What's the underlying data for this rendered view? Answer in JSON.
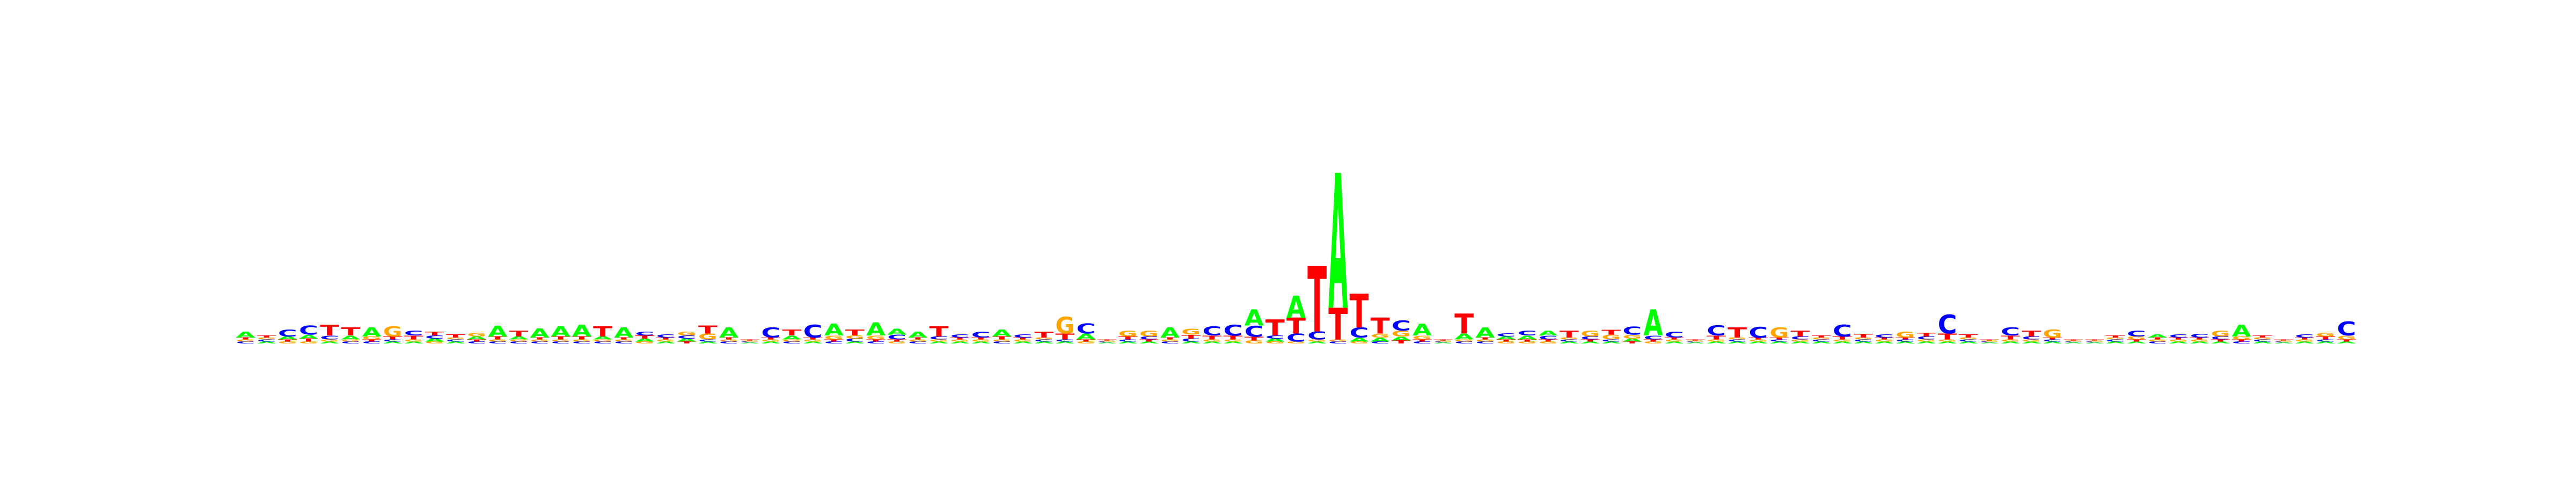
{
  "chart_data": {
    "type": "sequence_logo",
    "alphabet": [
      "A",
      "C",
      "G",
      "T"
    ],
    "colors": {
      "A": "#00ff00",
      "C": "#0000ff",
      "G": "#ffa500",
      "T": "#ff0000"
    },
    "unit": "bits",
    "ylim": [
      0,
      2
    ],
    "axes_visible": false,
    "positions": [
      {
        "A": 0.03,
        "C": 0.01,
        "G": 0.01,
        "T": 0.01
      },
      {
        "A": 0.01,
        "C": 0.01,
        "G": 0.01,
        "T": 0.01
      },
      {
        "A": 0.015,
        "C": 0.035,
        "G": 0.01,
        "T": 0.01
      },
      {
        "A": 0.02,
        "C": 0.045,
        "G": 0.01,
        "T": 0.015
      },
      {
        "A": 0.01,
        "C": 0.02,
        "G": 0.01,
        "T": 0.055
      },
      {
        "A": 0.02,
        "C": 0.01,
        "G": 0.01,
        "T": 0.04
      },
      {
        "A": 0.045,
        "C": 0.01,
        "G": 0.015,
        "T": 0.01
      },
      {
        "A": 0.01,
        "C": 0.01,
        "G": 0.05,
        "T": 0.015
      },
      {
        "A": 0.01,
        "C": 0.025,
        "G": 0.01,
        "T": 0.02
      },
      {
        "A": 0.015,
        "C": 0.015,
        "G": 0.01,
        "T": 0.02
      },
      {
        "A": 0.01,
        "C": 0.01,
        "G": 0.01,
        "T": 0.015
      },
      {
        "A": 0.015,
        "C": 0.01,
        "G": 0.02,
        "T": 0.01
      },
      {
        "A": 0.055,
        "C": 0.01,
        "G": 0.01,
        "T": 0.015
      },
      {
        "A": 0.015,
        "C": 0.01,
        "G": 0.01,
        "T": 0.03
      },
      {
        "A": 0.045,
        "C": 0.01,
        "G": 0.01,
        "T": 0.01
      },
      {
        "A": 0.05,
        "C": 0.01,
        "G": 0.01,
        "T": 0.015
      },
      {
        "A": 0.06,
        "C": 0.01,
        "G": 0.01,
        "T": 0.015
      },
      {
        "A": 0.015,
        "C": 0.01,
        "G": 0.01,
        "T": 0.05
      },
      {
        "A": 0.05,
        "C": 0.01,
        "G": 0.01,
        "T": 0.01
      },
      {
        "A": 0.015,
        "C": 0.02,
        "G": 0.01,
        "T": 0.015
      },
      {
        "A": 0.01,
        "C": 0.015,
        "G": 0.01,
        "T": 0.01
      },
      {
        "A": 0.015,
        "C": 0.015,
        "G": 0.02,
        "T": 0.01
      },
      {
        "A": 0.01,
        "C": 0.01,
        "G": 0.03,
        "T": 0.04
      },
      {
        "A": 0.05,
        "C": 0.01,
        "G": 0.01,
        "T": 0.01
      },
      {
        "A": 0.005,
        "C": 0.005,
        "G": 0.005,
        "T": 0.005
      },
      {
        "A": 0.01,
        "C": 0.05,
        "G": 0.01,
        "T": 0.01
      },
      {
        "A": 0.02,
        "C": 0.01,
        "G": 0.01,
        "T": 0.03
      },
      {
        "A": 0.01,
        "C": 0.065,
        "G": 0.01,
        "T": 0.01
      },
      {
        "A": 0.06,
        "C": 0.01,
        "G": 0.02,
        "T": 0.01
      },
      {
        "A": 0.01,
        "C": 0.015,
        "G": 0.015,
        "T": 0.03
      },
      {
        "A": 0.065,
        "C": 0.01,
        "G": 0.02,
        "T": 0.01
      },
      {
        "A": 0.03,
        "C": 0.025,
        "G": 0.01,
        "T": 0.01
      },
      {
        "A": 0.03,
        "C": 0.01,
        "G": 0.01,
        "T": 0.01
      },
      {
        "A": 0.01,
        "C": 0.015,
        "G": 0.01,
        "T": 0.05
      },
      {
        "A": 0.01,
        "C": 0.015,
        "G": 0.01,
        "T": 0.01
      },
      {
        "A": 0.01,
        "C": 0.03,
        "G": 0.01,
        "T": 0.01
      },
      {
        "A": 0.035,
        "C": 0.01,
        "G": 0.01,
        "T": 0.015
      },
      {
        "A": 0.01,
        "C": 0.015,
        "G": 0.01,
        "T": 0.01
      },
      {
        "A": 0.01,
        "C": 0.01,
        "G": 0.01,
        "T": 0.03
      },
      {
        "A": 0.01,
        "C": 0.01,
        "G": 0.085,
        "T": 0.03
      },
      {
        "A": 0.03,
        "C": 0.05,
        "G": 0.01,
        "T": 0.01
      },
      {
        "A": 0.005,
        "C": 0.005,
        "G": 0.005,
        "T": 0.005
      },
      {
        "A": 0.01,
        "C": 0.01,
        "G": 0.03,
        "T": 0.015
      },
      {
        "A": 0.01,
        "C": 0.015,
        "G": 0.03,
        "T": 0.01
      },
      {
        "A": 0.05,
        "C": 0.01,
        "G": 0.01,
        "T": 0.01
      },
      {
        "A": 0.01,
        "C": 0.015,
        "G": 0.03,
        "T": 0.02
      },
      {
        "A": 0.01,
        "C": 0.045,
        "G": 0.01,
        "T": 0.02
      },
      {
        "A": 0.01,
        "C": 0.055,
        "G": 0.01,
        "T": 0.02
      },
      {
        "A": 0.08,
        "C": 0.055,
        "G": 0.015,
        "T": 0.02
      },
      {
        "A": 0.015,
        "C": 0.015,
        "G": 0.01,
        "T": 0.08
      },
      {
        "A": 0.11,
        "C": 0.04,
        "G": 0.01,
        "T": 0.08
      },
      {
        "A": 0.01,
        "C": 0.04,
        "G": 0.01,
        "T": 0.33
      },
      {
        "A": 0.68,
        "C": 0.01,
        "G": 0.01,
        "T": 0.16
      },
      {
        "A": 0.02,
        "C": 0.05,
        "G": 0.01,
        "T": 0.17
      },
      {
        "A": 0.02,
        "C": 0.01,
        "G": 0.02,
        "T": 0.08
      },
      {
        "A": 0.02,
        "C": 0.05,
        "G": 0.03,
        "T": 0.015
      },
      {
        "A": 0.06,
        "C": 0.01,
        "G": 0.02,
        "T": 0.01
      },
      {
        "A": 0.005,
        "C": 0.005,
        "G": 0.005,
        "T": 0.005
      },
      {
        "A": 0.03,
        "C": 0.01,
        "G": 0.01,
        "T": 0.1
      },
      {
        "A": 0.05,
        "C": 0.01,
        "G": 0.01,
        "T": 0.01
      },
      {
        "A": 0.015,
        "C": 0.015,
        "G": 0.01,
        "T": 0.01
      },
      {
        "A": 0.02,
        "C": 0.025,
        "G": 0.01,
        "T": 0.01
      },
      {
        "A": 0.025,
        "C": 0.02,
        "G": 0.01,
        "T": 0.01
      },
      {
        "A": 0.01,
        "C": 0.01,
        "G": 0.01,
        "T": 0.035
      },
      {
        "A": 0.01,
        "C": 0.015,
        "G": 0.03,
        "T": 0.01
      },
      {
        "A": 0.01,
        "C": 0.01,
        "G": 0.025,
        "T": 0.025
      },
      {
        "A": 0.015,
        "C": 0.04,
        "G": 0.02,
        "T": 0.01
      },
      {
        "A": 0.13,
        "C": 0.02,
        "G": 0.01,
        "T": 0.01
      },
      {
        "A": 0.01,
        "C": 0.03,
        "G": 0.01,
        "T": 0.01
      },
      {
        "A": 0.005,
        "C": 0.005,
        "G": 0.005,
        "T": 0.005
      },
      {
        "A": 0.01,
        "C": 0.05,
        "G": 0.01,
        "T": 0.02
      },
      {
        "A": 0.01,
        "C": 0.01,
        "G": 0.01,
        "T": 0.05
      },
      {
        "A": 0.01,
        "C": 0.055,
        "G": 0.01,
        "T": 0.01
      },
      {
        "A": 0.01,
        "C": 0.01,
        "G": 0.05,
        "T": 0.01
      },
      {
        "A": 0.01,
        "C": 0.015,
        "G": 0.01,
        "T": 0.03
      },
      {
        "A": 0.01,
        "C": 0.01,
        "G": 0.01,
        "T": 0.01
      },
      {
        "A": 0.01,
        "C": 0.06,
        "G": 0.01,
        "T": 0.015
      },
      {
        "A": 0.01,
        "C": 0.01,
        "G": 0.01,
        "T": 0.02
      },
      {
        "A": 0.01,
        "C": 0.015,
        "G": 0.01,
        "T": 0.01
      },
      {
        "A": 0.01,
        "C": 0.01,
        "G": 0.03,
        "T": 0.01
      },
      {
        "A": 0.01,
        "C": 0.015,
        "G": 0.01,
        "T": 0.02
      },
      {
        "A": 0.01,
        "C": 0.095,
        "G": 0.01,
        "T": 0.03
      },
      {
        "A": 0.01,
        "C": 0.01,
        "G": 0.01,
        "T": 0.015
      },
      {
        "A": 0.005,
        "C": 0.005,
        "G": 0.005,
        "T": 0.005
      },
      {
        "A": 0.01,
        "C": 0.04,
        "G": 0.01,
        "T": 0.02
      },
      {
        "A": 0.01,
        "C": 0.015,
        "G": 0.01,
        "T": 0.03
      },
      {
        "A": 0.01,
        "C": 0.01,
        "G": 0.04,
        "T": 0.01
      },
      {
        "A": 0.005,
        "C": 0.005,
        "G": 0.005,
        "T": 0.005
      },
      {
        "A": 0.005,
        "C": 0.005,
        "G": 0.005,
        "T": 0.005
      },
      {
        "A": 0.01,
        "C": 0.01,
        "G": 0.01,
        "T": 0.01
      },
      {
        "A": 0.01,
        "C": 0.03,
        "G": 0.015,
        "T": 0.01
      },
      {
        "A": 0.015,
        "C": 0.01,
        "G": 0.01,
        "T": 0.01
      },
      {
        "A": 0.01,
        "C": 0.015,
        "G": 0.01,
        "T": 0.01
      },
      {
        "A": 0.01,
        "C": 0.02,
        "G": 0.01,
        "T": 0.01
      },
      {
        "A": 0.01,
        "C": 0.015,
        "G": 0.03,
        "T": 0.01
      },
      {
        "A": 0.06,
        "C": 0.01,
        "G": 0.015,
        "T": 0.01
      },
      {
        "A": 0.01,
        "C": 0.01,
        "G": 0.01,
        "T": 0.01
      },
      {
        "A": 0.005,
        "C": 0.005,
        "G": 0.005,
        "T": 0.005
      },
      {
        "A": 0.01,
        "C": 0.015,
        "G": 0.01,
        "T": 0.01
      },
      {
        "A": 0.01,
        "C": 0.01,
        "G": 0.02,
        "T": 0.015
      },
      {
        "A": 0.01,
        "C": 0.07,
        "G": 0.02,
        "T": 0.01
      }
    ]
  }
}
